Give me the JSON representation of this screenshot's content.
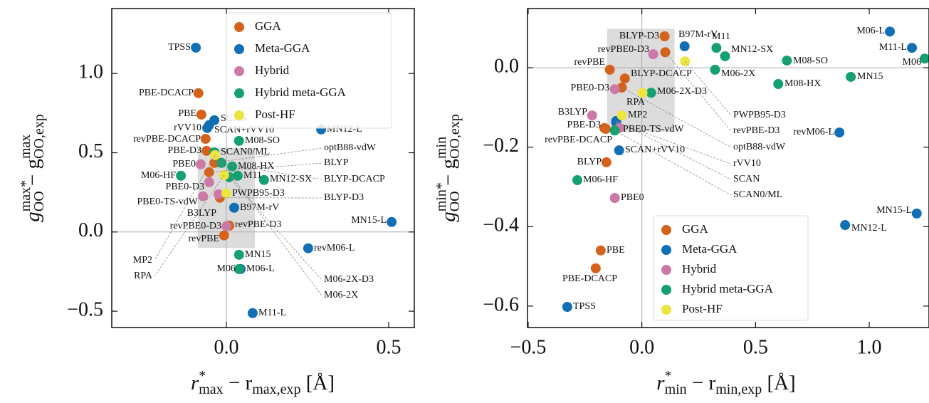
{
  "chart_data": [
    {
      "type": "scatter",
      "xlabel": [
        [
          "r",
          "i"
        ],
        [
          "*",
          "sup"
        ],
        [
          "max",
          "sub"
        ],
        [
          " − r",
          ""
        ],
        [
          "max,exp",
          "sub"
        ],
        [
          " [Å]",
          ""
        ]
      ],
      "ylabel": [
        [
          "g",
          "i"
        ],
        [
          "max*",
          "sup"
        ],
        [
          "OO",
          "sub"
        ],
        [
          " − g",
          ""
        ],
        [
          "max",
          "sup"
        ],
        [
          "OO,exp",
          "sub"
        ]
      ],
      "xlim": [
        -0.353,
        0.579
      ],
      "ylim": [
        -0.603,
        1.41
      ],
      "xticks": [
        {
          "value": 0,
          "label": "0.0"
        },
        {
          "value": 0.5,
          "label": "0.5"
        }
      ],
      "yticks": [
        {
          "value": -0.5,
          "label": "−0.5"
        },
        {
          "value": 0,
          "label": "0.0"
        },
        {
          "value": 0.5,
          "label": "0.5"
        },
        {
          "value": 1,
          "label": "1.0"
        }
      ],
      "zero_lines": true,
      "legend": "upper right",
      "highlight": {
        "x": [
          -0.088,
          0.088
        ],
        "y": [
          -0.1,
          0.53
        ]
      },
      "series": [
        {
          "name": "GGA",
          "color": "#d4621a",
          "labels": [
            "PBE-DCACP",
            "PBE",
            "revPBE-DCACP",
            "PBE-D3",
            "optB88-vdW",
            "BLYP",
            "BLYP-DCACP",
            "BLYP-D3",
            "revPBE-D3",
            "revPBE"
          ],
          "x": [
            -0.086,
            -0.077,
            -0.064,
            -0.061,
            -0.029,
            -0.053,
            -0.037,
            -0.02,
            0.009,
            -0.007
          ],
          "values": [
            0.876,
            0.741,
            0.588,
            0.512,
            0.44,
            0.377,
            0.436,
            0.216,
            0.04,
            -0.022
          ]
        },
        {
          "name": "Meta-GGA",
          "color": "#1170b5",
          "labels": [
            "TPSS",
            "SCAN",
            "rVV10",
            "SCAN+rVV10",
            "MN12-L",
            "B97M-rV",
            "M06-L",
            "revM06-L",
            "MN15-L",
            "M11-L"
          ],
          "x": [
            -0.094,
            -0.037,
            -0.059,
            -0.053,
            0.292,
            0.024,
            0.044,
            0.252,
            0.509,
            0.081
          ],
          "values": [
            1.163,
            0.705,
            0.656,
            0.674,
            0.647,
            0.153,
            -0.234,
            -0.103,
            0.063,
            -0.512
          ]
        },
        {
          "name": "Hybrid",
          "color": "#cc79a7",
          "labels": [
            "PBE0",
            "PBE0-D3",
            "PBE0-TS-vdW",
            "B3LYP",
            "revPBE0-D3"
          ],
          "x": [
            -0.079,
            -0.053,
            -0.072,
            -0.024,
            0.0
          ],
          "values": [
            0.427,
            0.314,
            0.225,
            0.238,
            0.036
          ]
        },
        {
          "name": "Hybrid meta-GGA",
          "color": "#14a06f",
          "labels": [
            "M08-SO",
            "SCAN0/ML",
            "M08-HX",
            "M06-HF",
            "M11",
            "MN12-SX",
            "M06-2X-D3",
            "M06-2X",
            "MN15",
            "M06"
          ],
          "x": [
            0.039,
            -0.037,
            0.018,
            -0.14,
            0.035,
            0.116,
            0.009,
            -0.015,
            0.039,
            0.039
          ],
          "values": [
            0.575,
            0.503,
            0.413,
            0.355,
            0.355,
            0.328,
            0.346,
            0.436,
            -0.144,
            -0.234
          ]
        },
        {
          "name": "Post-HF",
          "color": "#eee440",
          "labels": [
            "MP2",
            "RPA",
            "PWPB95-D3"
          ],
          "x": [
            -0.035,
            -0.007,
            0.0
          ],
          "values": [
            0.485,
            0.359,
            0.243
          ]
        }
      ]
    },
    {
      "type": "scatter",
      "xlabel": [
        [
          "r",
          "i"
        ],
        [
          "*",
          "sup"
        ],
        [
          "min",
          "sub"
        ],
        [
          " − r",
          ""
        ],
        [
          "min,exp",
          "sub"
        ],
        [
          " [Å]",
          ""
        ]
      ],
      "ylabel": [
        [
          "g",
          "i"
        ],
        [
          "min*",
          "sup"
        ],
        [
          "OO",
          "sub"
        ],
        [
          " − g",
          ""
        ],
        [
          "min",
          "sup"
        ],
        [
          "OO,exp",
          "sub"
        ]
      ],
      "xlim": [
        -0.503,
        1.263
      ],
      "ylim": [
        -0.654,
        0.149
      ],
      "xticks": [
        {
          "value": -0.5,
          "label": "−0.5"
        },
        {
          "value": 0,
          "label": "0.0"
        },
        {
          "value": 0.5,
          "label": "0.5"
        },
        {
          "value": 1,
          "label": "1.0"
        }
      ],
      "yticks": [
        {
          "value": -0.6,
          "label": "−0.6"
        },
        {
          "value": -0.4,
          "label": "−0.4"
        },
        {
          "value": -0.2,
          "label": "−0.2"
        },
        {
          "value": 0,
          "label": "0.0"
        }
      ],
      "zero_lines": true,
      "legend": "lower center",
      "highlight": {
        "x": [
          -0.153,
          0.144
        ],
        "y": [
          -0.161,
          0.098
        ]
      },
      "series": [
        {
          "name": "GGA",
          "color": "#d4621a",
          "labels": [
            "BLYP-D3",
            "revPBE-D3",
            "revPBE",
            "BLYP-DCACP",
            "optB88-vdW",
            "PBE-D3",
            "revPBE-DCACP",
            "BLYP",
            "PBE",
            "PBE-DCACP"
          ],
          "x": [
            0.1,
            0.103,
            -0.141,
            -0.075,
            -0.088,
            -0.159,
            -0.165,
            -0.156,
            -0.181,
            -0.203
          ],
          "values": [
            0.079,
            0.039,
            -0.005,
            -0.027,
            -0.05,
            -0.154,
            -0.152,
            -0.238,
            -0.46,
            -0.505
          ]
        },
        {
          "name": "Meta-GGA",
          "color": "#1170b5",
          "labels": [
            "B97M-rV",
            "M06-L",
            "M11-L",
            "SCAN",
            "rVV10",
            "SCAN+rVV10",
            "revM06-L",
            "MN15-L",
            "MN12-L",
            "TPSS"
          ],
          "x": [
            0.188,
            1.091,
            1.188,
            -0.113,
            -0.113,
            -0.1,
            0.869,
            1.209,
            0.894,
            -0.328
          ],
          "values": [
            0.054,
            0.091,
            0.05,
            -0.134,
            -0.138,
            -0.208,
            -0.163,
            -0.367,
            -0.396,
            -0.602
          ]
        },
        {
          "name": "Hybrid",
          "color": "#cc79a7",
          "labels": [
            "revPBE0-D3",
            "PBE0-D3",
            "B3LYP",
            "PBE0-TS-vdW",
            "PBE0"
          ],
          "x": [
            0.05,
            -0.119,
            -0.219,
            -0.1,
            -0.119
          ],
          "values": [
            0.034,
            -0.054,
            -0.12,
            -0.152,
            -0.328
          ]
        },
        {
          "name": "Hybrid meta-GGA",
          "color": "#14a06f",
          "labels": [
            "M11",
            "MN12-SX",
            "M08-SO",
            "M06",
            "M06-2X",
            "MN15",
            "M08-HX",
            "M06-2X-D3",
            "SCAN0/ML",
            "M06-HF"
          ],
          "x": [
            0.328,
            0.366,
            0.638,
            1.244,
            0.322,
            0.919,
            0.6,
            0.041,
            -0.119,
            -0.284
          ],
          "values": [
            0.05,
            0.029,
            0.018,
            0.023,
            -0.005,
            -0.023,
            -0.041,
            -0.063,
            -0.158,
            -0.283
          ]
        },
        {
          "name": "Post-HF",
          "color": "#eee440",
          "labels": [
            "PWPB95-D3",
            "RPA",
            "MP2"
          ],
          "x": [
            0.19,
            0.003,
            -0.088
          ],
          "values": [
            0.016,
            -0.063,
            -0.12
          ]
        }
      ]
    }
  ]
}
